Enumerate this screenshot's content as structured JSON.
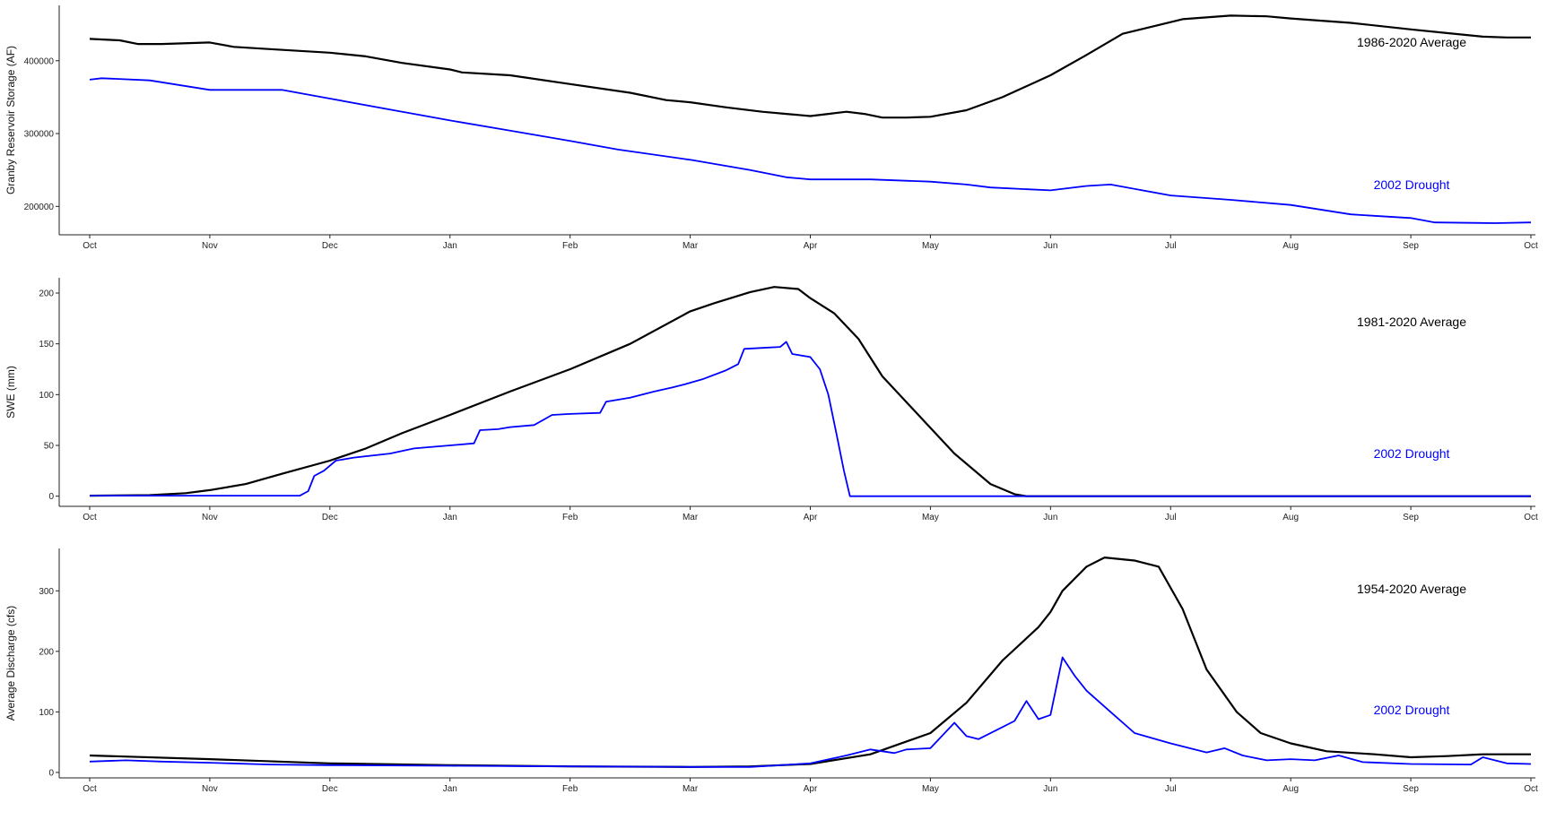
{
  "colors": {
    "average": "#000000",
    "drought": "#0000ff",
    "axis": "#222222",
    "background": "#ffffff"
  },
  "chart_data": [
    {
      "type": "line",
      "ylabel": "Granby Reservoir Storage (AF)",
      "xlabel": "",
      "x_ticks": [
        "Oct",
        "Nov",
        "Dec",
        "Jan",
        "Feb",
        "Mar",
        "Apr",
        "May",
        "Jun",
        "Jul",
        "Aug",
        "Sep",
        "Oct"
      ],
      "y_ticks": [
        200000,
        300000,
        400000
      ],
      "ylim": [
        161000,
        476000
      ],
      "grid": false,
      "legend": "none",
      "series": [
        {
          "name": "1986-2020 Average",
          "label_position": "upper-right",
          "points": [
            [
              0,
              430000
            ],
            [
              0.25,
              428000
            ],
            [
              0.4,
              423000
            ],
            [
              0.6,
              423000
            ],
            [
              1,
              425000
            ],
            [
              1.2,
              419000
            ],
            [
              1.5,
              416000
            ],
            [
              2,
              411000
            ],
            [
              2.3,
              406000
            ],
            [
              2.6,
              397000
            ],
            [
              3,
              388000
            ],
            [
              3.1,
              384000
            ],
            [
              3.5,
              380000
            ],
            [
              4,
              368000
            ],
            [
              4.5,
              356000
            ],
            [
              4.8,
              346000
            ],
            [
              5,
              343000
            ],
            [
              5.3,
              336000
            ],
            [
              5.6,
              330000
            ],
            [
              5.8,
              327000
            ],
            [
              6,
              324000
            ],
            [
              6.15,
              327000
            ],
            [
              6.3,
              330000
            ],
            [
              6.45,
              327000
            ],
            [
              6.6,
              322000
            ],
            [
              6.8,
              322000
            ],
            [
              7,
              323000
            ],
            [
              7.3,
              332000
            ],
            [
              7.6,
              350000
            ],
            [
              8,
              380000
            ],
            [
              8.3,
              408000
            ],
            [
              8.6,
              437000
            ],
            [
              8.9,
              449000
            ],
            [
              9.1,
              457000
            ],
            [
              9.5,
              462000
            ],
            [
              9.8,
              461000
            ],
            [
              10,
              458000
            ],
            [
              10.5,
              452000
            ],
            [
              11,
              443000
            ],
            [
              11.3,
              438000
            ],
            [
              11.6,
              433000
            ],
            [
              11.8,
              432000
            ],
            [
              12,
              432000
            ]
          ]
        },
        {
          "name": "2002 Drought",
          "label_position": "lower-right",
          "points": [
            [
              0,
              374000
            ],
            [
              0.1,
              376000
            ],
            [
              0.5,
              373000
            ],
            [
              1,
              360000
            ],
            [
              1.6,
              360000
            ],
            [
              2,
              348000
            ],
            [
              2.5,
              333000
            ],
            [
              3,
              318000
            ],
            [
              3.5,
              304000
            ],
            [
              4,
              290000
            ],
            [
              4.4,
              278000
            ],
            [
              5,
              264000
            ],
            [
              5.5,
              250000
            ],
            [
              5.8,
              240000
            ],
            [
              6,
              237000
            ],
            [
              6.5,
              237000
            ],
            [
              7,
              234000
            ],
            [
              7.3,
              230000
            ],
            [
              7.5,
              226000
            ],
            [
              8,
              222000
            ],
            [
              8.3,
              228000
            ],
            [
              8.5,
              230000
            ],
            [
              9,
              215000
            ],
            [
              9.5,
              209000
            ],
            [
              10,
              202000
            ],
            [
              10.5,
              189000
            ],
            [
              11,
              184000
            ],
            [
              11.2,
              178000
            ],
            [
              11.7,
              177000
            ],
            [
              12,
              178000
            ]
          ]
        }
      ]
    },
    {
      "type": "line",
      "ylabel": "SWE (mm)",
      "xlabel": "",
      "x_ticks": [
        "Oct",
        "Nov",
        "Dec",
        "Jan",
        "Feb",
        "Mar",
        "Apr",
        "May",
        "Jun",
        "Jul",
        "Aug",
        "Sep",
        "Oct"
      ],
      "y_ticks": [
        0,
        50,
        100,
        150,
        200
      ],
      "ylim": [
        -10,
        215
      ],
      "grid": false,
      "legend": "none",
      "series": [
        {
          "name": "1981-2020 Average",
          "label_position": "upper-right",
          "points": [
            [
              0,
              0.5
            ],
            [
              0.5,
              1
            ],
            [
              0.8,
              3
            ],
            [
              1,
              6
            ],
            [
              1.3,
              12
            ],
            [
              1.6,
              22
            ],
            [
              2,
              35
            ],
            [
              2.3,
              47
            ],
            [
              2.6,
              62
            ],
            [
              3,
              80
            ],
            [
              3.5,
              103
            ],
            [
              4,
              125
            ],
            [
              4.5,
              150
            ],
            [
              5,
              182
            ],
            [
              5.2,
              190
            ],
            [
              5.5,
              201
            ],
            [
              5.7,
              206
            ],
            [
              5.9,
              204
            ],
            [
              6,
              195
            ],
            [
              6.2,
              180
            ],
            [
              6.4,
              155
            ],
            [
              6.6,
              118
            ],
            [
              6.9,
              80
            ],
            [
              7.2,
              42
            ],
            [
              7.5,
              12
            ],
            [
              7.7,
              2
            ],
            [
              7.8,
              0
            ],
            [
              12,
              0
            ]
          ]
        },
        {
          "name": "2002 Drought",
          "label_position": "lower-right",
          "points": [
            [
              0,
              0.5
            ],
            [
              1.75,
              0.5
            ],
            [
              1.82,
              5
            ],
            [
              1.87,
              20
            ],
            [
              1.95,
              25
            ],
            [
              2.05,
              35
            ],
            [
              2.2,
              38
            ],
            [
              2.5,
              42
            ],
            [
              2.7,
              47
            ],
            [
              3,
              50
            ],
            [
              3.2,
              52
            ],
            [
              3.25,
              65
            ],
            [
              3.4,
              66
            ],
            [
              3.5,
              68
            ],
            [
              3.7,
              70
            ],
            [
              3.85,
              80
            ],
            [
              4,
              81
            ],
            [
              4.25,
              82
            ],
            [
              4.3,
              93
            ],
            [
              4.5,
              97
            ],
            [
              4.7,
              103
            ],
            [
              4.85,
              107
            ],
            [
              4.95,
              110
            ],
            [
              5.1,
              115
            ],
            [
              5.3,
              124
            ],
            [
              5.4,
              130
            ],
            [
              5.45,
              145
            ],
            [
              5.6,
              146
            ],
            [
              5.75,
              147
            ],
            [
              5.8,
              152
            ],
            [
              5.85,
              140
            ],
            [
              6,
              137
            ],
            [
              6.08,
              125
            ],
            [
              6.15,
              100
            ],
            [
              6.22,
              60
            ],
            [
              6.28,
              25
            ],
            [
              6.33,
              0
            ],
            [
              12,
              0
            ]
          ]
        }
      ]
    },
    {
      "type": "line",
      "ylabel": "Average Discharge (cfs)",
      "xlabel": "",
      "x_ticks": [
        "Oct",
        "Nov",
        "Dec",
        "Jan",
        "Feb",
        "Mar",
        "Apr",
        "May",
        "Jun",
        "Jul",
        "Aug",
        "Sep",
        "Oct"
      ],
      "y_ticks": [
        0,
        100,
        200,
        300
      ],
      "ylim": [
        -9,
        370
      ],
      "grid": false,
      "legend": "none",
      "series": [
        {
          "name": "1954-2020 Average",
          "label_position": "upper-right",
          "points": [
            [
              0,
              28
            ],
            [
              1,
              22
            ],
            [
              2,
              15
            ],
            [
              3,
              12
            ],
            [
              4,
              10
            ],
            [
              5,
              9
            ],
            [
              5.5,
              10
            ],
            [
              6,
              14
            ],
            [
              6.5,
              30
            ],
            [
              7,
              65
            ],
            [
              7.3,
              115
            ],
            [
              7.6,
              185
            ],
            [
              7.9,
              240
            ],
            [
              8,
              265
            ],
            [
              8.1,
              300
            ],
            [
              8.3,
              340
            ],
            [
              8.45,
              355
            ],
            [
              8.7,
              350
            ],
            [
              8.9,
              340
            ],
            [
              9.1,
              270
            ],
            [
              9.3,
              170
            ],
            [
              9.55,
              100
            ],
            [
              9.75,
              65
            ],
            [
              10,
              48
            ],
            [
              10.3,
              35
            ],
            [
              10.7,
              30
            ],
            [
              11,
              25
            ],
            [
              11.3,
              27
            ],
            [
              11.6,
              30
            ],
            [
              12,
              30
            ]
          ]
        },
        {
          "name": "2002 Drought",
          "label_position": "lower-right",
          "points": [
            [
              0,
              18
            ],
            [
              0.3,
              20
            ],
            [
              0.6,
              18
            ],
            [
              1,
              16
            ],
            [
              1.5,
              13
            ],
            [
              2,
              12
            ],
            [
              3,
              11
            ],
            [
              4,
              10
            ],
            [
              5,
              9
            ],
            [
              5.5,
              9
            ],
            [
              6,
              15
            ],
            [
              6.3,
              28
            ],
            [
              6.5,
              38
            ],
            [
              6.7,
              32
            ],
            [
              6.8,
              38
            ],
            [
              7,
              40
            ],
            [
              7.2,
              82
            ],
            [
              7.3,
              60
            ],
            [
              7.4,
              55
            ],
            [
              7.6,
              75
            ],
            [
              7.7,
              85
            ],
            [
              7.8,
              118
            ],
            [
              7.9,
              88
            ],
            [
              8,
              95
            ],
            [
              8.1,
              190
            ],
            [
              8.2,
              160
            ],
            [
              8.3,
              135
            ],
            [
              8.5,
              100
            ],
            [
              8.7,
              65
            ],
            [
              9,
              48
            ],
            [
              9.3,
              33
            ],
            [
              9.45,
              40
            ],
            [
              9.6,
              28
            ],
            [
              9.8,
              20
            ],
            [
              10,
              22
            ],
            [
              10.2,
              20
            ],
            [
              10.4,
              28
            ],
            [
              10.6,
              17
            ],
            [
              11,
              14
            ],
            [
              11.5,
              13
            ],
            [
              11.6,
              25
            ],
            [
              11.8,
              15
            ],
            [
              12,
              14
            ]
          ]
        }
      ]
    }
  ]
}
